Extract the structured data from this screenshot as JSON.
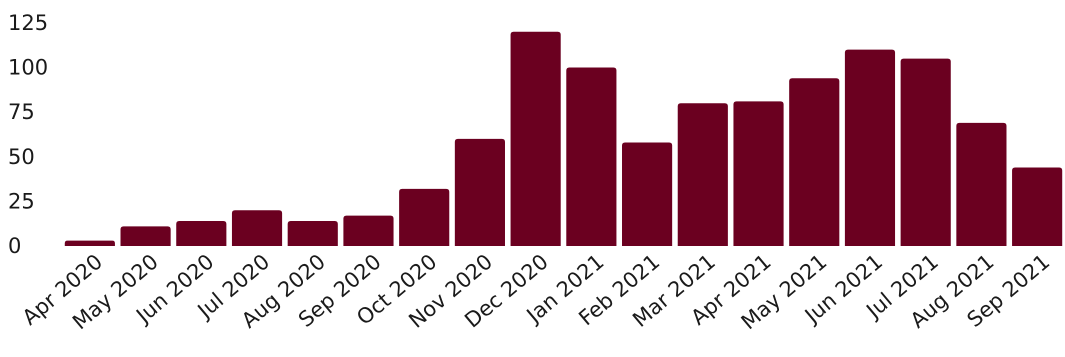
{
  "chart_data": {
    "type": "bar",
    "title": "",
    "xlabel": "",
    "ylabel": "",
    "categories": [
      "Apr 2020",
      "May 2020",
      "Jun 2020",
      "Jul 2020",
      "Aug 2020",
      "Sep 2020",
      "Oct 2020",
      "Nov 2020",
      "Dec 2020",
      "Jan 2021",
      "Feb 2021",
      "Mar 2021",
      "Apr 2021",
      "May 2021",
      "Jun 2021",
      "Jul 2021",
      "Aug 2021",
      "Sep 2021"
    ],
    "values": [
      3,
      11,
      14,
      20,
      14,
      17,
      32,
      60,
      120,
      100,
      58,
      80,
      81,
      94,
      110,
      105,
      69,
      44
    ],
    "yticks": [
      "0",
      "25",
      "50",
      "75",
      "100",
      "125"
    ],
    "ytick_values": [
      0,
      25,
      50,
      75,
      100,
      125
    ],
    "ylim": [
      0,
      135
    ],
    "grid": false,
    "legend": "none",
    "bar_color": "#6b0020",
    "text_color": "#1a1a1a"
  }
}
